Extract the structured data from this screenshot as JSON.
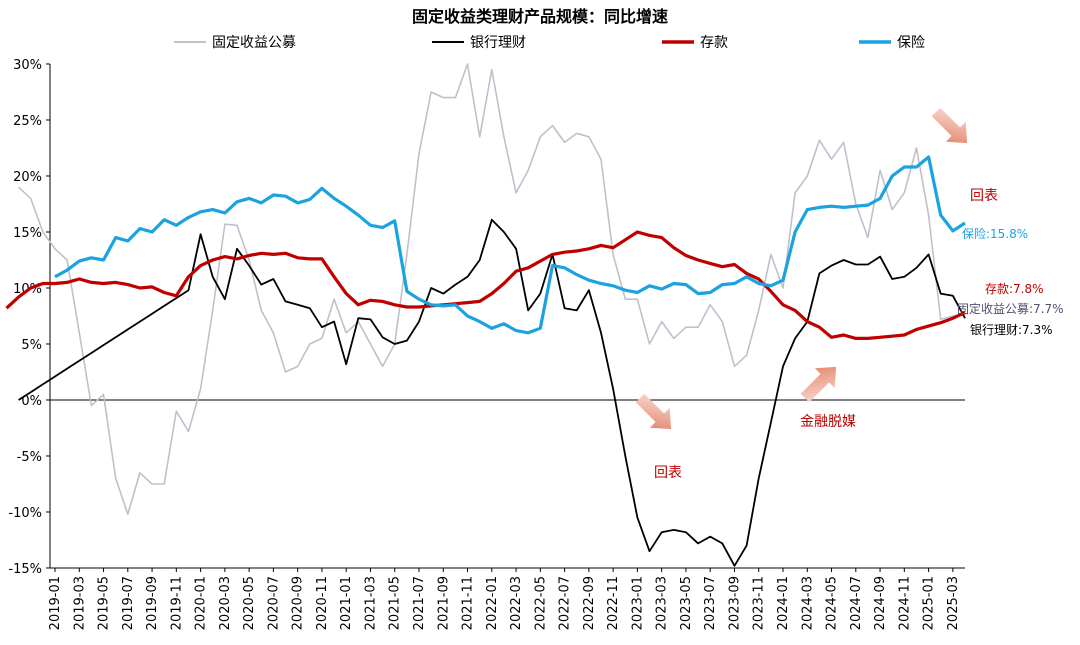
{
  "chart_data": {
    "type": "line",
    "title": "固定收益类理财产品规模：同比增速",
    "ylim": [
      -15,
      30
    ],
    "yticks": [
      "30%",
      "25%",
      "20%",
      "15%",
      "10%",
      "5%",
      "0%",
      "-5%",
      "-10%",
      "-15%"
    ],
    "ytick_values": [
      30,
      25,
      20,
      15,
      10,
      5,
      0,
      -5,
      -10,
      -15
    ],
    "xticks": [
      "2019-01",
      "2019-03",
      "2019-05",
      "2019-07",
      "2019-09",
      "2019-11",
      "2020-01",
      "2020-03",
      "2020-05",
      "2020-07",
      "2020-09",
      "2020-11",
      "2021-01",
      "2021-03",
      "2021-05",
      "2021-07",
      "2021-09",
      "2021-11",
      "2022-01",
      "2022-03",
      "2022-05",
      "2022-07",
      "2022-09",
      "2022-11",
      "2023-01",
      "2023-03",
      "2023-05",
      "2023-07",
      "2023-09",
      "2023-11",
      "2024-01",
      "2024-03",
      "2024-05",
      "2024-07",
      "2024-09",
      "2024-11",
      "2025-01",
      "2025-03"
    ],
    "grid": false,
    "legend_position": "top",
    "series": [
      {
        "name": "固定收益公募",
        "color": "#c0c0cc",
        "values": [
          19.0,
          18.0,
          15.0,
          13.5,
          12.5,
          6.0,
          -0.5,
          0.5,
          -7.0,
          -10.2,
          -6.5,
          -7.5,
          -7.5,
          -1.0,
          -2.8,
          1.0,
          8.0,
          15.7,
          15.6,
          12.5,
          8.0,
          6.0,
          2.5,
          3.0,
          5.0,
          5.5,
          9.0,
          6.0,
          7.0,
          5.0,
          3.0,
          5.0,
          13.0,
          22.0,
          27.5,
          27.0,
          27.0,
          30.0,
          23.5,
          29.5,
          23.5,
          18.5,
          20.5,
          23.5,
          24.5,
          23.0,
          23.8,
          23.5,
          21.5,
          13.0,
          9.0,
          9.0,
          5.0,
          7.0,
          5.5,
          6.5,
          6.5,
          8.5,
          7.0,
          3.0,
          4.0,
          8.0,
          13.0,
          10.0,
          18.5,
          20.0,
          23.2,
          21.5,
          23.0,
          17.5,
          14.5,
          20.5,
          17.0,
          18.5,
          22.5,
          16.5,
          7.2,
          7.5,
          7.7
        ]
      },
      {
        "name": "银行理财",
        "color": "#000000",
        "values": [
          0.0,
          0.7,
          1.4,
          2.1,
          2.8,
          3.5,
          4.2,
          4.9,
          5.6,
          6.3,
          7.0,
          7.7,
          8.4,
          9.1,
          9.8,
          14.8,
          11.0,
          9.0,
          13.5,
          12.0,
          10.3,
          10.8,
          8.8,
          8.5,
          8.2,
          6.5,
          7.0,
          3.2,
          7.3,
          7.2,
          5.6,
          5.0,
          5.3,
          7.0,
          10.0,
          9.5,
          10.3,
          11.0,
          12.5,
          16.1,
          15.0,
          13.5,
          8.0,
          9.5,
          13.0,
          8.2,
          8.0,
          9.8,
          6.0,
          1.0,
          -5.0,
          -10.5,
          -13.5,
          -11.8,
          -11.6,
          -11.8,
          -12.8,
          -12.2,
          -12.8,
          -14.8,
          -13.0,
          -7.0,
          -2.0,
          3.0,
          5.5,
          7.0,
          11.3,
          12.0,
          12.5,
          12.1,
          12.1,
          12.8,
          10.8,
          11.0,
          11.8,
          13.0,
          9.5,
          9.3,
          7.3
        ]
      },
      {
        "name": "存款",
        "color": "#c00000",
        "values": [
          8.2,
          9.2,
          10.0,
          10.4,
          10.4,
          10.5,
          10.8,
          10.5,
          10.4,
          10.5,
          10.3,
          10.0,
          10.1,
          9.6,
          9.3,
          11.0,
          12.0,
          12.5,
          12.8,
          12.6,
          12.9,
          13.1,
          13.0,
          13.1,
          12.7,
          12.6,
          12.6,
          11.0,
          9.5,
          8.5,
          8.9,
          8.8,
          8.5,
          8.3,
          8.3,
          8.4,
          8.5,
          8.6,
          8.7,
          8.8,
          9.5,
          10.4,
          11.5,
          11.8,
          12.4,
          13.0,
          13.2,
          13.3,
          13.5,
          13.8,
          13.6,
          14.3,
          15.0,
          14.7,
          14.5,
          13.6,
          12.9,
          12.5,
          12.2,
          11.9,
          12.1,
          11.3,
          10.8,
          9.7,
          8.5,
          8.0,
          7.0,
          6.5,
          5.6,
          5.8,
          5.5,
          5.5,
          5.6,
          5.7,
          5.8,
          6.3,
          6.6,
          6.9,
          7.3,
          7.8
        ]
      },
      {
        "name": "保险",
        "color": "#1aa3e0",
        "values": [
          11.0,
          11.6,
          12.4,
          12.7,
          12.5,
          14.5,
          14.2,
          15.3,
          15.0,
          16.1,
          15.6,
          16.3,
          16.8,
          17.0,
          16.7,
          17.7,
          18.0,
          17.6,
          18.3,
          18.2,
          17.6,
          17.9,
          18.9,
          18.0,
          17.3,
          16.5,
          15.6,
          15.4,
          16.0,
          9.7,
          9.0,
          8.5,
          8.4,
          8.5,
          7.5,
          7.0,
          6.4,
          6.8,
          6.2,
          6.0,
          6.4,
          12.0,
          11.8,
          11.2,
          10.7,
          10.4,
          10.2,
          9.8,
          9.6,
          10.2,
          9.9,
          10.4,
          10.3,
          9.5,
          9.6,
          10.3,
          10.4,
          11.0,
          10.4,
          10.2,
          10.7,
          15.0,
          17.0,
          17.2,
          17.3,
          17.2,
          17.3,
          17.4,
          18.0,
          20.0,
          20.8,
          20.8,
          21.7,
          16.5,
          15.1,
          15.8
        ]
      }
    ],
    "end_labels": [
      "保险:15.8%",
      "存款:7.8%",
      "固定收益公募:7.7%",
      "银行理财:7.3%"
    ],
    "annotations": [
      "回表",
      "回表",
      "金融脱媒"
    ]
  }
}
